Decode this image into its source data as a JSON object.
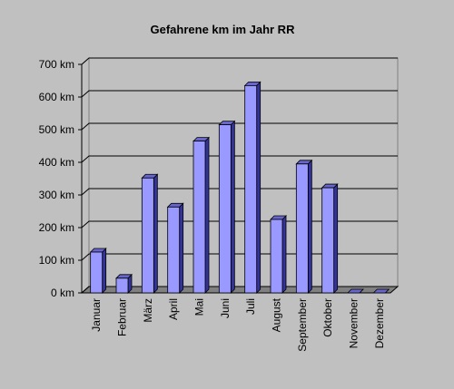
{
  "chart_data": {
    "type": "bar",
    "title": "Gefahrene km im Jahr RR",
    "categories": [
      "Januar",
      "Februar",
      "März",
      "April",
      "Mai",
      "Juni",
      "Juli",
      "August",
      "September",
      "Oktober",
      "November",
      "Dezember"
    ],
    "values": [
      125,
      45,
      352,
      263,
      465,
      515,
      635,
      225,
      395,
      322,
      0,
      0
    ],
    "color": "#9999ff",
    "ylim": [
      0,
      700
    ],
    "yticks": [
      {
        "value": 0,
        "label": "0 km"
      },
      {
        "value": 100,
        "label": "100 km"
      },
      {
        "value": 200,
        "label": "200 km"
      },
      {
        "value": 300,
        "label": "300 km"
      },
      {
        "value": 400,
        "label": "400 km"
      },
      {
        "value": 500,
        "label": "500 km"
      },
      {
        "value": 600,
        "label": "600 km"
      },
      {
        "value": 700,
        "label": "700 km"
      }
    ],
    "grid": true
  }
}
